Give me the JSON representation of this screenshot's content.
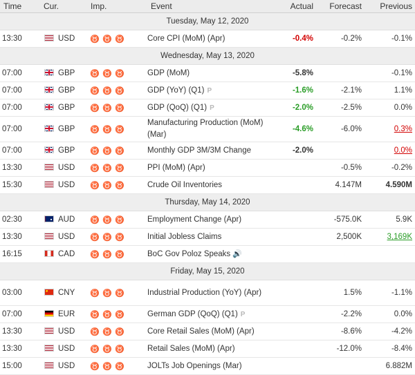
{
  "headers": {
    "time": "Time",
    "currency": "Cur.",
    "importance": "Imp.",
    "event": "Event",
    "actual": "Actual",
    "forecast": "Forecast",
    "previous": "Previous"
  },
  "days": [
    {
      "date": "Tuesday, May 12, 2020",
      "events": [
        {
          "time": "13:30",
          "currency": "USD",
          "flag": "us-flag",
          "event": "Core CPI (MoM) (Apr)",
          "actual": "-0.4%",
          "actual_color": "red",
          "forecast": "-0.2%",
          "previous": "-0.1%"
        }
      ]
    },
    {
      "date": "Wednesday, May 13, 2020",
      "events": [
        {
          "time": "07:00",
          "currency": "GBP",
          "flag": "uk-flag",
          "event": "GDP (MoM)",
          "actual": "-5.8%",
          "forecast": "",
          "previous": "-0.1%"
        },
        {
          "time": "07:00",
          "currency": "GBP",
          "flag": "uk-flag",
          "event": "GDP (YoY) (Q1)",
          "badge": "P",
          "actual": "-1.6%",
          "actual_color": "green",
          "forecast": "-2.1%",
          "previous": "1.1%"
        },
        {
          "time": "07:00",
          "currency": "GBP",
          "flag": "uk-flag",
          "event": "GDP (QoQ) (Q1)",
          "badge": "P",
          "actual": "-2.0%",
          "actual_color": "green",
          "forecast": "-2.5%",
          "previous": "0.0%"
        },
        {
          "time": "07:00",
          "currency": "GBP",
          "flag": "uk-flag",
          "event": "Manufacturing Production (MoM) (Mar)",
          "actual": "-4.6%",
          "actual_color": "green",
          "forecast": "-6.0%",
          "previous": "0.3%",
          "previous_color": "red",
          "previous_revised": true
        },
        {
          "time": "07:00",
          "currency": "GBP",
          "flag": "uk-flag",
          "event": "Monthly GDP 3M/3M Change",
          "actual": "-2.0%",
          "forecast": "",
          "previous": "0.0%",
          "previous_color": "red",
          "previous_revised": true
        },
        {
          "time": "13:30",
          "currency": "USD",
          "flag": "us-flag",
          "event": "PPI (MoM) (Apr)",
          "actual": "",
          "forecast": "-0.5%",
          "previous": "-0.2%"
        },
        {
          "time": "15:30",
          "currency": "USD",
          "flag": "us-flag",
          "event": "Crude Oil Inventories",
          "actual": "",
          "forecast": "4.147M",
          "previous": "4.590M",
          "previous_bold": true
        }
      ]
    },
    {
      "date": "Thursday, May 14, 2020",
      "events": [
        {
          "time": "02:30",
          "currency": "AUD",
          "flag": "au-flag",
          "event": "Employment Change (Apr)",
          "actual": "",
          "forecast": "-575.0K",
          "previous": "5.9K"
        },
        {
          "time": "13:30",
          "currency": "USD",
          "flag": "us-flag",
          "event": "Initial Jobless Claims",
          "actual": "",
          "forecast": "2,500K",
          "previous": "3,169K",
          "previous_color": "green",
          "previous_revised": true
        },
        {
          "time": "16:15",
          "currency": "CAD",
          "flag": "ca-flag",
          "event": "BoC Gov Poloz Speaks",
          "speech": true,
          "actual": "",
          "forecast": "",
          "previous": ""
        }
      ]
    },
    {
      "date": "Friday, May 15, 2020",
      "events": [
        {
          "time": "03:00",
          "currency": "CNY",
          "flag": "cn-flag",
          "event": "Industrial Production (YoY) (Apr)",
          "actual": "",
          "forecast": "1.5%",
          "previous": "-1.1%"
        },
        {
          "time": "07:00",
          "currency": "EUR",
          "flag": "de-flag",
          "event": "German GDP (QoQ) (Q1)",
          "badge": "P",
          "actual": "",
          "forecast": "-2.2%",
          "previous": "0.0%"
        },
        {
          "time": "13:30",
          "currency": "USD",
          "flag": "us-flag",
          "event": "Core Retail Sales (MoM) (Apr)",
          "actual": "",
          "forecast": "-8.6%",
          "previous": "-4.2%"
        },
        {
          "time": "13:30",
          "currency": "USD",
          "flag": "us-flag",
          "event": "Retail Sales (MoM) (Apr)",
          "actual": "",
          "forecast": "-12.0%",
          "previous": "-8.4%"
        },
        {
          "time": "15:00",
          "currency": "USD",
          "flag": "us-flag",
          "event": "JOLTs Job Openings (Mar)",
          "actual": "",
          "forecast": "",
          "previous": "6.882M"
        }
      ]
    }
  ],
  "colors": {
    "red": "#d20000",
    "green": "#2a9d27",
    "bull_icon": "#7a7a7a"
  }
}
